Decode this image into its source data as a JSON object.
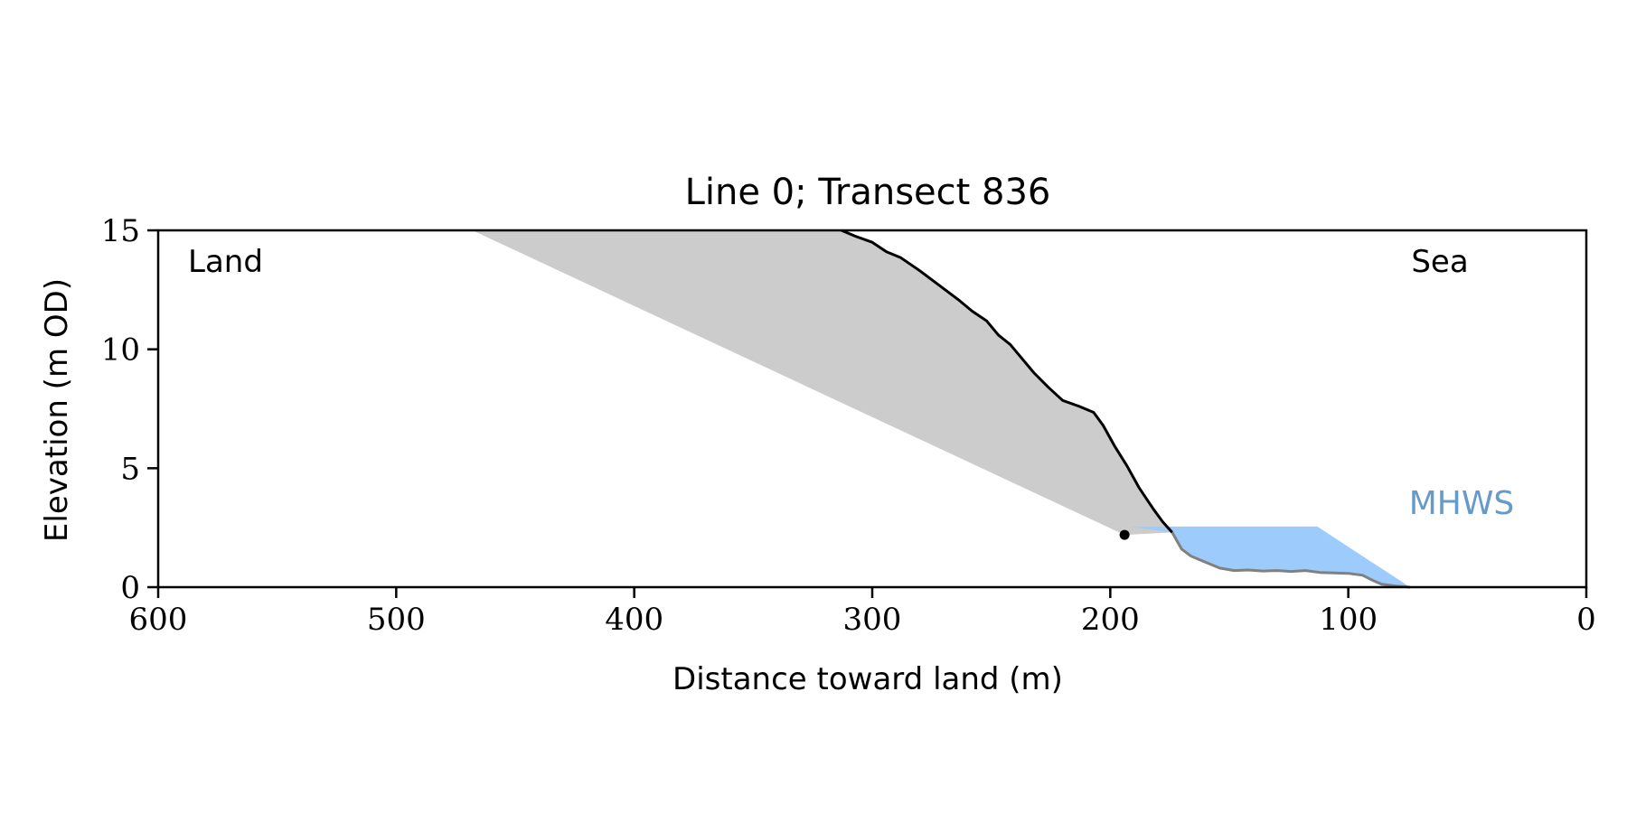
{
  "chart_data": {
    "type": "area",
    "title": "Line 0; Transect 836",
    "xlabel": "Distance toward land (m)",
    "ylabel": "Elevation (m OD)",
    "xlim": [
      600,
      0
    ],
    "ylim": [
      0,
      15
    ],
    "xticks": [
      600,
      500,
      400,
      300,
      200,
      100,
      0
    ],
    "yticks": [
      0,
      5,
      10,
      15
    ],
    "grid": false,
    "corner_labels": {
      "left": "Land",
      "right": "Sea"
    },
    "mhws_label": "MHWS",
    "colors": {
      "profile": "#000000",
      "submerged_profile": "#808080",
      "wedge_fill": "#cccccc",
      "water_fill": "#9ccbfc",
      "mhws_text": "#6699cc"
    },
    "cliff_toe": {
      "x": 194,
      "y": 2.2
    },
    "mhws": {
      "level": 2.55,
      "x_from": 192,
      "x_to": 113
    },
    "wedge_top_x": 468,
    "profile_above_mhws": [
      [
        313,
        15
      ],
      [
        307,
        14.75
      ],
      [
        300,
        14.5
      ],
      [
        294,
        14.1
      ],
      [
        288,
        13.85
      ],
      [
        280,
        13.3
      ],
      [
        272,
        12.7
      ],
      [
        264,
        12.1
      ],
      [
        258,
        11.6
      ],
      [
        252,
        11.2
      ],
      [
        247,
        10.6
      ],
      [
        242,
        10.2
      ],
      [
        237,
        9.6
      ],
      [
        232,
        9.0
      ],
      [
        226,
        8.4
      ],
      [
        220,
        7.85
      ],
      [
        213,
        7.6
      ],
      [
        207,
        7.35
      ],
      [
        203,
        6.8
      ],
      [
        198,
        5.9
      ],
      [
        193,
        5.1
      ],
      [
        188,
        4.2
      ],
      [
        182,
        3.3
      ],
      [
        178,
        2.75
      ],
      [
        174,
        2.3
      ]
    ],
    "profile_below_mhws": [
      [
        174,
        2.3
      ],
      [
        170,
        1.6
      ],
      [
        166,
        1.3
      ],
      [
        160,
        1.05
      ],
      [
        154,
        0.8
      ],
      [
        148,
        0.7
      ],
      [
        142,
        0.72
      ],
      [
        136,
        0.68
      ],
      [
        130,
        0.7
      ],
      [
        124,
        0.66
      ],
      [
        118,
        0.7
      ],
      [
        112,
        0.62
      ],
      [
        106,
        0.6
      ],
      [
        100,
        0.58
      ],
      [
        94,
        0.5
      ],
      [
        90,
        0.3
      ],
      [
        86,
        0.12
      ],
      [
        80,
        0.05
      ],
      [
        74,
        0.0
      ]
    ]
  }
}
